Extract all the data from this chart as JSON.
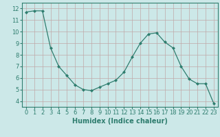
{
  "x": [
    0,
    1,
    2,
    3,
    4,
    5,
    6,
    7,
    8,
    9,
    10,
    11,
    12,
    13,
    14,
    15,
    16,
    17,
    18,
    19,
    20,
    21,
    22,
    23
  ],
  "y": [
    11.7,
    11.8,
    11.8,
    8.6,
    7.0,
    6.2,
    5.4,
    5.0,
    4.9,
    5.2,
    5.5,
    5.8,
    6.5,
    7.8,
    9.0,
    9.8,
    9.9,
    9.1,
    8.6,
    7.0,
    5.9,
    5.5,
    5.5,
    3.8
  ],
  "line_color": "#2e7d6e",
  "marker": "D",
  "marker_size": 2,
  "bg_color": "#cce8e8",
  "grid_color": "#c0a8a8",
  "xlabel": "Humidex (Indice chaleur)",
  "xlim": [
    -0.5,
    23.5
  ],
  "ylim": [
    3.5,
    12.5
  ],
  "yticks": [
    4,
    5,
    6,
    7,
    8,
    9,
    10,
    11,
    12
  ],
  "xticks": [
    0,
    1,
    2,
    3,
    4,
    5,
    6,
    7,
    8,
    9,
    10,
    11,
    12,
    13,
    14,
    15,
    16,
    17,
    18,
    19,
    20,
    21,
    22,
    23
  ],
  "tick_fontsize": 6,
  "xlabel_fontsize": 7,
  "spine_color": "#2e7d6e"
}
